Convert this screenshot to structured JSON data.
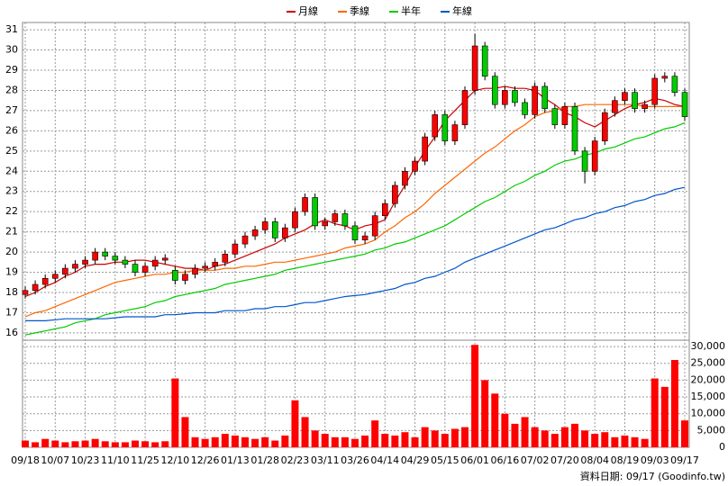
{
  "chart_data": [
    {
      "type": "candlestick",
      "categories": [
        "09/18",
        null,
        null,
        "10/07",
        null,
        null,
        "10/23",
        null,
        null,
        "11/10",
        null,
        null,
        "11/25",
        null,
        null,
        "12/10",
        null,
        null,
        "12/26",
        null,
        null,
        "01/13",
        null,
        null,
        "01/28",
        null,
        null,
        "02/23",
        null,
        null,
        "03/11",
        null,
        null,
        "03/26",
        null,
        null,
        "04/14",
        null,
        null,
        "04/29",
        null,
        null,
        "05/15",
        null,
        null,
        "06/01",
        null,
        null,
        "06/16",
        null,
        null,
        "07/02",
        null,
        null,
        "07/20",
        null,
        null,
        "08/04",
        null,
        null,
        "08/19",
        null,
        null,
        "09/03",
        null,
        null,
        "09/17"
      ],
      "open": [
        17.9,
        18.1,
        18.4,
        18.7,
        18.9,
        19.2,
        19.4,
        19.6,
        20.0,
        19.8,
        19.6,
        19.4,
        19.0,
        19.3,
        19.6,
        19.1,
        18.6,
        18.9,
        19.2,
        19.3,
        19.5,
        19.9,
        20.4,
        20.8,
        21.1,
        21.5,
        20.7,
        21.2,
        22.0,
        22.7,
        21.3,
        21.5,
        21.9,
        21.3,
        20.6,
        20.8,
        21.8,
        22.4,
        23.3,
        24.0,
        24.5,
        25.7,
        26.8,
        25.5,
        26.3,
        28.0,
        30.2,
        28.7,
        27.3,
        28.0,
        27.4,
        26.8,
        28.2,
        27.1,
        26.3,
        27.2,
        25.0,
        24.0,
        25.5,
        26.9,
        27.5,
        27.9,
        27.1,
        27.3,
        28.6,
        28.7,
        27.9
      ],
      "high": [
        18.3,
        18.6,
        18.9,
        19.1,
        19.4,
        19.6,
        19.8,
        20.2,
        20.2,
        20.0,
        19.8,
        19.6,
        19.5,
        19.8,
        19.9,
        19.3,
        19.1,
        19.4,
        19.5,
        19.7,
        20.1,
        20.6,
        21.0,
        21.3,
        21.7,
        21.7,
        21.4,
        22.2,
        22.9,
        22.9,
        21.7,
        22.1,
        22.1,
        21.5,
        21.0,
        22.0,
        22.6,
        23.5,
        24.2,
        24.7,
        25.9,
        27.0,
        27.0,
        26.5,
        28.2,
        30.8,
        30.4,
        28.9,
        28.2,
        28.2,
        27.6,
        28.4,
        28.4,
        27.3,
        27.4,
        27.4,
        25.2,
        25.7,
        27.1,
        27.7,
        28.1,
        28.1,
        27.5,
        28.8,
        28.9,
        28.9,
        28.1
      ],
      "low": [
        17.7,
        17.9,
        18.2,
        18.5,
        18.7,
        19.0,
        19.2,
        19.4,
        19.6,
        19.4,
        19.2,
        18.8,
        18.8,
        19.1,
        19.4,
        18.4,
        18.4,
        18.7,
        19.0,
        19.1,
        19.3,
        19.7,
        20.2,
        20.6,
        20.9,
        20.5,
        20.5,
        21.0,
        21.8,
        21.1,
        21.1,
        21.3,
        21.1,
        20.4,
        20.4,
        20.6,
        21.6,
        22.2,
        23.1,
        23.8,
        24.3,
        25.5,
        25.3,
        25.3,
        26.1,
        27.8,
        28.5,
        27.1,
        27.1,
        27.2,
        26.6,
        26.6,
        26.9,
        26.1,
        26.1,
        24.8,
        23.4,
        23.8,
        25.3,
        26.7,
        27.3,
        26.9,
        26.9,
        27.1,
        28.4,
        27.7,
        26.5
      ],
      "close": [
        18.1,
        18.4,
        18.7,
        18.9,
        19.2,
        19.4,
        19.6,
        20.0,
        19.8,
        19.6,
        19.4,
        19.0,
        19.3,
        19.6,
        19.7,
        18.6,
        18.9,
        19.2,
        19.3,
        19.5,
        19.9,
        20.4,
        20.8,
        21.1,
        21.5,
        20.7,
        21.2,
        22.0,
        22.7,
        21.3,
        21.5,
        21.9,
        21.3,
        20.6,
        20.8,
        21.8,
        22.4,
        23.3,
        24.0,
        24.5,
        25.7,
        26.8,
        25.5,
        26.3,
        28.0,
        30.2,
        28.7,
        27.3,
        28.0,
        27.4,
        26.8,
        28.2,
        27.1,
        26.3,
        27.2,
        25.0,
        24.0,
        25.5,
        26.9,
        27.5,
        27.9,
        27.1,
        27.3,
        28.6,
        28.7,
        27.9,
        26.7
      ],
      "up_color": "#ff0000",
      "down_color": "#00cc00",
      "series": [
        {
          "name": "月線",
          "color": "#cc0000",
          "values": [
            17.8,
            18.0,
            18.3,
            18.5,
            18.8,
            19.0,
            19.3,
            19.4,
            19.4,
            19.5,
            19.5,
            19.6,
            19.6,
            19.5,
            19.4,
            19.3,
            19.2,
            19.2,
            19.1,
            19.3,
            19.4,
            19.6,
            19.8,
            20.0,
            20.2,
            20.4,
            20.7,
            20.9,
            21.1,
            21.4,
            21.6,
            21.4,
            21.3,
            21.1,
            21.3,
            21.4,
            21.6,
            22.5,
            23.3,
            24.2,
            25.0,
            25.7,
            26.5,
            27.0,
            27.5,
            28.0,
            28.1,
            28.1,
            28.2,
            28.1,
            28.1,
            28.0,
            27.6,
            27.3,
            26.9,
            26.7,
            26.4,
            26.2,
            26.5,
            26.8,
            27.1,
            27.3,
            27.4,
            27.6,
            27.5,
            27.3,
            27.2
          ]
        },
        {
          "name": "季線",
          "color": "#ff6600",
          "values": [
            16.8,
            17.0,
            17.1,
            17.3,
            17.5,
            17.7,
            17.9,
            18.1,
            18.3,
            18.5,
            18.6,
            18.7,
            18.8,
            18.9,
            18.9,
            19.0,
            19.0,
            19.1,
            19.1,
            19.1,
            19.2,
            19.2,
            19.3,
            19.3,
            19.4,
            19.5,
            19.5,
            19.6,
            19.7,
            19.8,
            19.9,
            20.0,
            20.2,
            20.3,
            20.4,
            20.6,
            21.0,
            21.3,
            21.7,
            22.0,
            22.4,
            22.9,
            23.3,
            23.7,
            24.1,
            24.5,
            24.9,
            25.2,
            25.6,
            26.0,
            26.3,
            26.7,
            26.9,
            27.0,
            27.2,
            27.2,
            27.3,
            27.3,
            27.3,
            27.3,
            27.3,
            27.3,
            27.2,
            27.2,
            27.2,
            27.2,
            27.2
          ]
        },
        {
          "name": "半年",
          "color": "#00cc00",
          "values": [
            15.9,
            16.0,
            16.1,
            16.2,
            16.3,
            16.5,
            16.6,
            16.7,
            16.9,
            17.0,
            17.1,
            17.2,
            17.3,
            17.5,
            17.6,
            17.8,
            17.9,
            18.0,
            18.1,
            18.2,
            18.4,
            18.5,
            18.6,
            18.7,
            18.8,
            18.9,
            19.1,
            19.2,
            19.3,
            19.4,
            19.5,
            19.6,
            19.7,
            19.8,
            19.9,
            20.1,
            20.2,
            20.4,
            20.5,
            20.7,
            20.9,
            21.1,
            21.3,
            21.6,
            21.9,
            22.2,
            22.5,
            22.7,
            23.0,
            23.3,
            23.5,
            23.8,
            24.0,
            24.3,
            24.5,
            24.6,
            24.8,
            24.9,
            25.1,
            25.2,
            25.4,
            25.6,
            25.7,
            25.9,
            26.1,
            26.2,
            26.4
          ]
        },
        {
          "name": "年線",
          "color": "#0055cc",
          "values": [
            16.6,
            16.6,
            16.6,
            16.65,
            16.7,
            16.7,
            16.7,
            16.7,
            16.7,
            16.75,
            16.8,
            16.8,
            16.8,
            16.8,
            16.9,
            16.9,
            16.95,
            17.0,
            17.0,
            17.0,
            17.1,
            17.1,
            17.1,
            17.2,
            17.2,
            17.3,
            17.3,
            17.4,
            17.5,
            17.5,
            17.6,
            17.7,
            17.8,
            17.85,
            17.9,
            18.0,
            18.1,
            18.2,
            18.4,
            18.5,
            18.7,
            18.8,
            19.0,
            19.2,
            19.5,
            19.7,
            19.9,
            20.1,
            20.3,
            20.5,
            20.7,
            20.9,
            21.1,
            21.2,
            21.4,
            21.6,
            21.7,
            21.9,
            22.0,
            22.2,
            22.3,
            22.5,
            22.6,
            22.8,
            22.9,
            23.1,
            23.2
          ]
        }
      ],
      "ylim": [
        15.64,
        31.36
      ],
      "yticks": [
        16,
        17,
        18,
        19,
        20,
        21,
        22,
        23,
        24,
        25,
        26,
        27,
        28,
        29,
        30,
        31
      ],
      "grid": true
    },
    {
      "type": "bar",
      "values": [
        2000,
        1500,
        2500,
        2000,
        1500,
        1800,
        2000,
        2500,
        1800,
        1500,
        1500,
        2000,
        1800,
        1500,
        1800,
        20500,
        9000,
        3000,
        2500,
        3000,
        4000,
        3500,
        3000,
        2500,
        3000,
        2000,
        3500,
        14000,
        9000,
        5000,
        4000,
        3000,
        3000,
        2500,
        3500,
        8000,
        4000,
        3500,
        4500,
        3000,
        6000,
        5000,
        4000,
        5500,
        6000,
        30500,
        20000,
        16000,
        10000,
        7000,
        9000,
        6000,
        5000,
        4000,
        6000,
        7000,
        5000,
        4000,
        4500,
        3000,
        3500,
        3000,
        2500,
        20500,
        18000,
        26000,
        8000
      ],
      "color": "#ff0000",
      "ylim": [
        0,
        31900
      ],
      "yticks": [
        0,
        {
          "value": 5000,
          "label": "5,000"
        },
        {
          "value": 10000,
          "label": "10,000"
        },
        {
          "value": 15000,
          "label": "15,000"
        },
        {
          "value": 20000,
          "label": "20,000"
        },
        {
          "value": 25000,
          "label": "25,000"
        },
        {
          "value": 30000,
          "label": "30,000"
        }
      ],
      "grid": true,
      "source": "資料日期: 09/17 (Goodinfo.tw)"
    }
  ]
}
